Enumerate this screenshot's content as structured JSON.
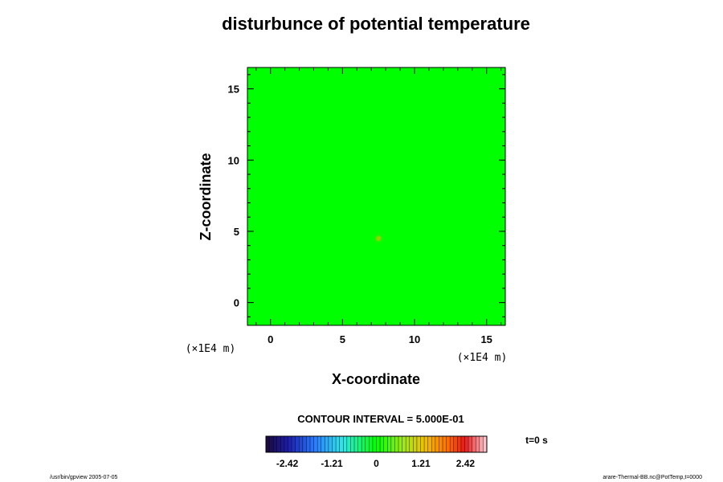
{
  "chart_data": {
    "type": "heatmap",
    "title": "disturbunce of potential temperature",
    "xlabel": "X-coordinate",
    "ylabel": "Z-coordinate",
    "x_unit": "(×1E4 m)",
    "y_unit": "(×1E4 m)",
    "xlim": [
      -1.6,
      16.3
    ],
    "ylim": [
      -1.6,
      16.5
    ],
    "x_ticks": [
      0,
      5,
      10,
      15
    ],
    "y_ticks": [
      0,
      5,
      10,
      15
    ],
    "field": {
      "background_value": 0,
      "anomaly": {
        "x": 7.5,
        "y": 4.5,
        "value": 0.3
      }
    },
    "contour_interval_text": "CONTOUR INTERVAL = 5.000E-01",
    "time_label": "t=0 s",
    "colorbar": {
      "labels": [
        "-2.42",
        "-1.21",
        "0",
        "1.21",
        "2.42"
      ],
      "label_values": [
        -2.42,
        -1.21,
        0,
        1.21,
        2.42
      ],
      "range": [
        -3.0,
        3.0
      ]
    },
    "colors": {
      "field": "#00ff00",
      "anomaly": "#8fd400"
    }
  },
  "footer": {
    "left": "/usr/bin/gpview 2005-07-05",
    "right": "arare-Thermal-BB.nc@PotTemp,t=0000"
  }
}
